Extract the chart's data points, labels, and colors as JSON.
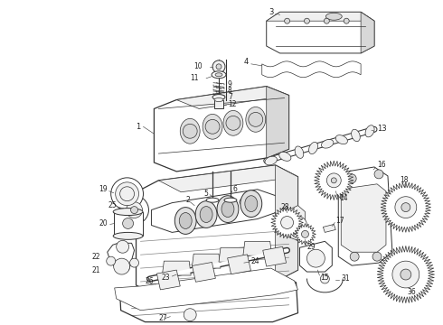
{
  "background_color": "#ffffff",
  "line_color": "#333333",
  "label_color": "#222222",
  "fig_width": 4.9,
  "fig_height": 3.6,
  "dpi": 100,
  "lw_main": 0.7,
  "lw_thin": 0.5,
  "lw_thick": 0.9,
  "fc_part": "#f0f0f0",
  "fc_dark": "#d8d8d8",
  "fc_white": "#ffffff"
}
